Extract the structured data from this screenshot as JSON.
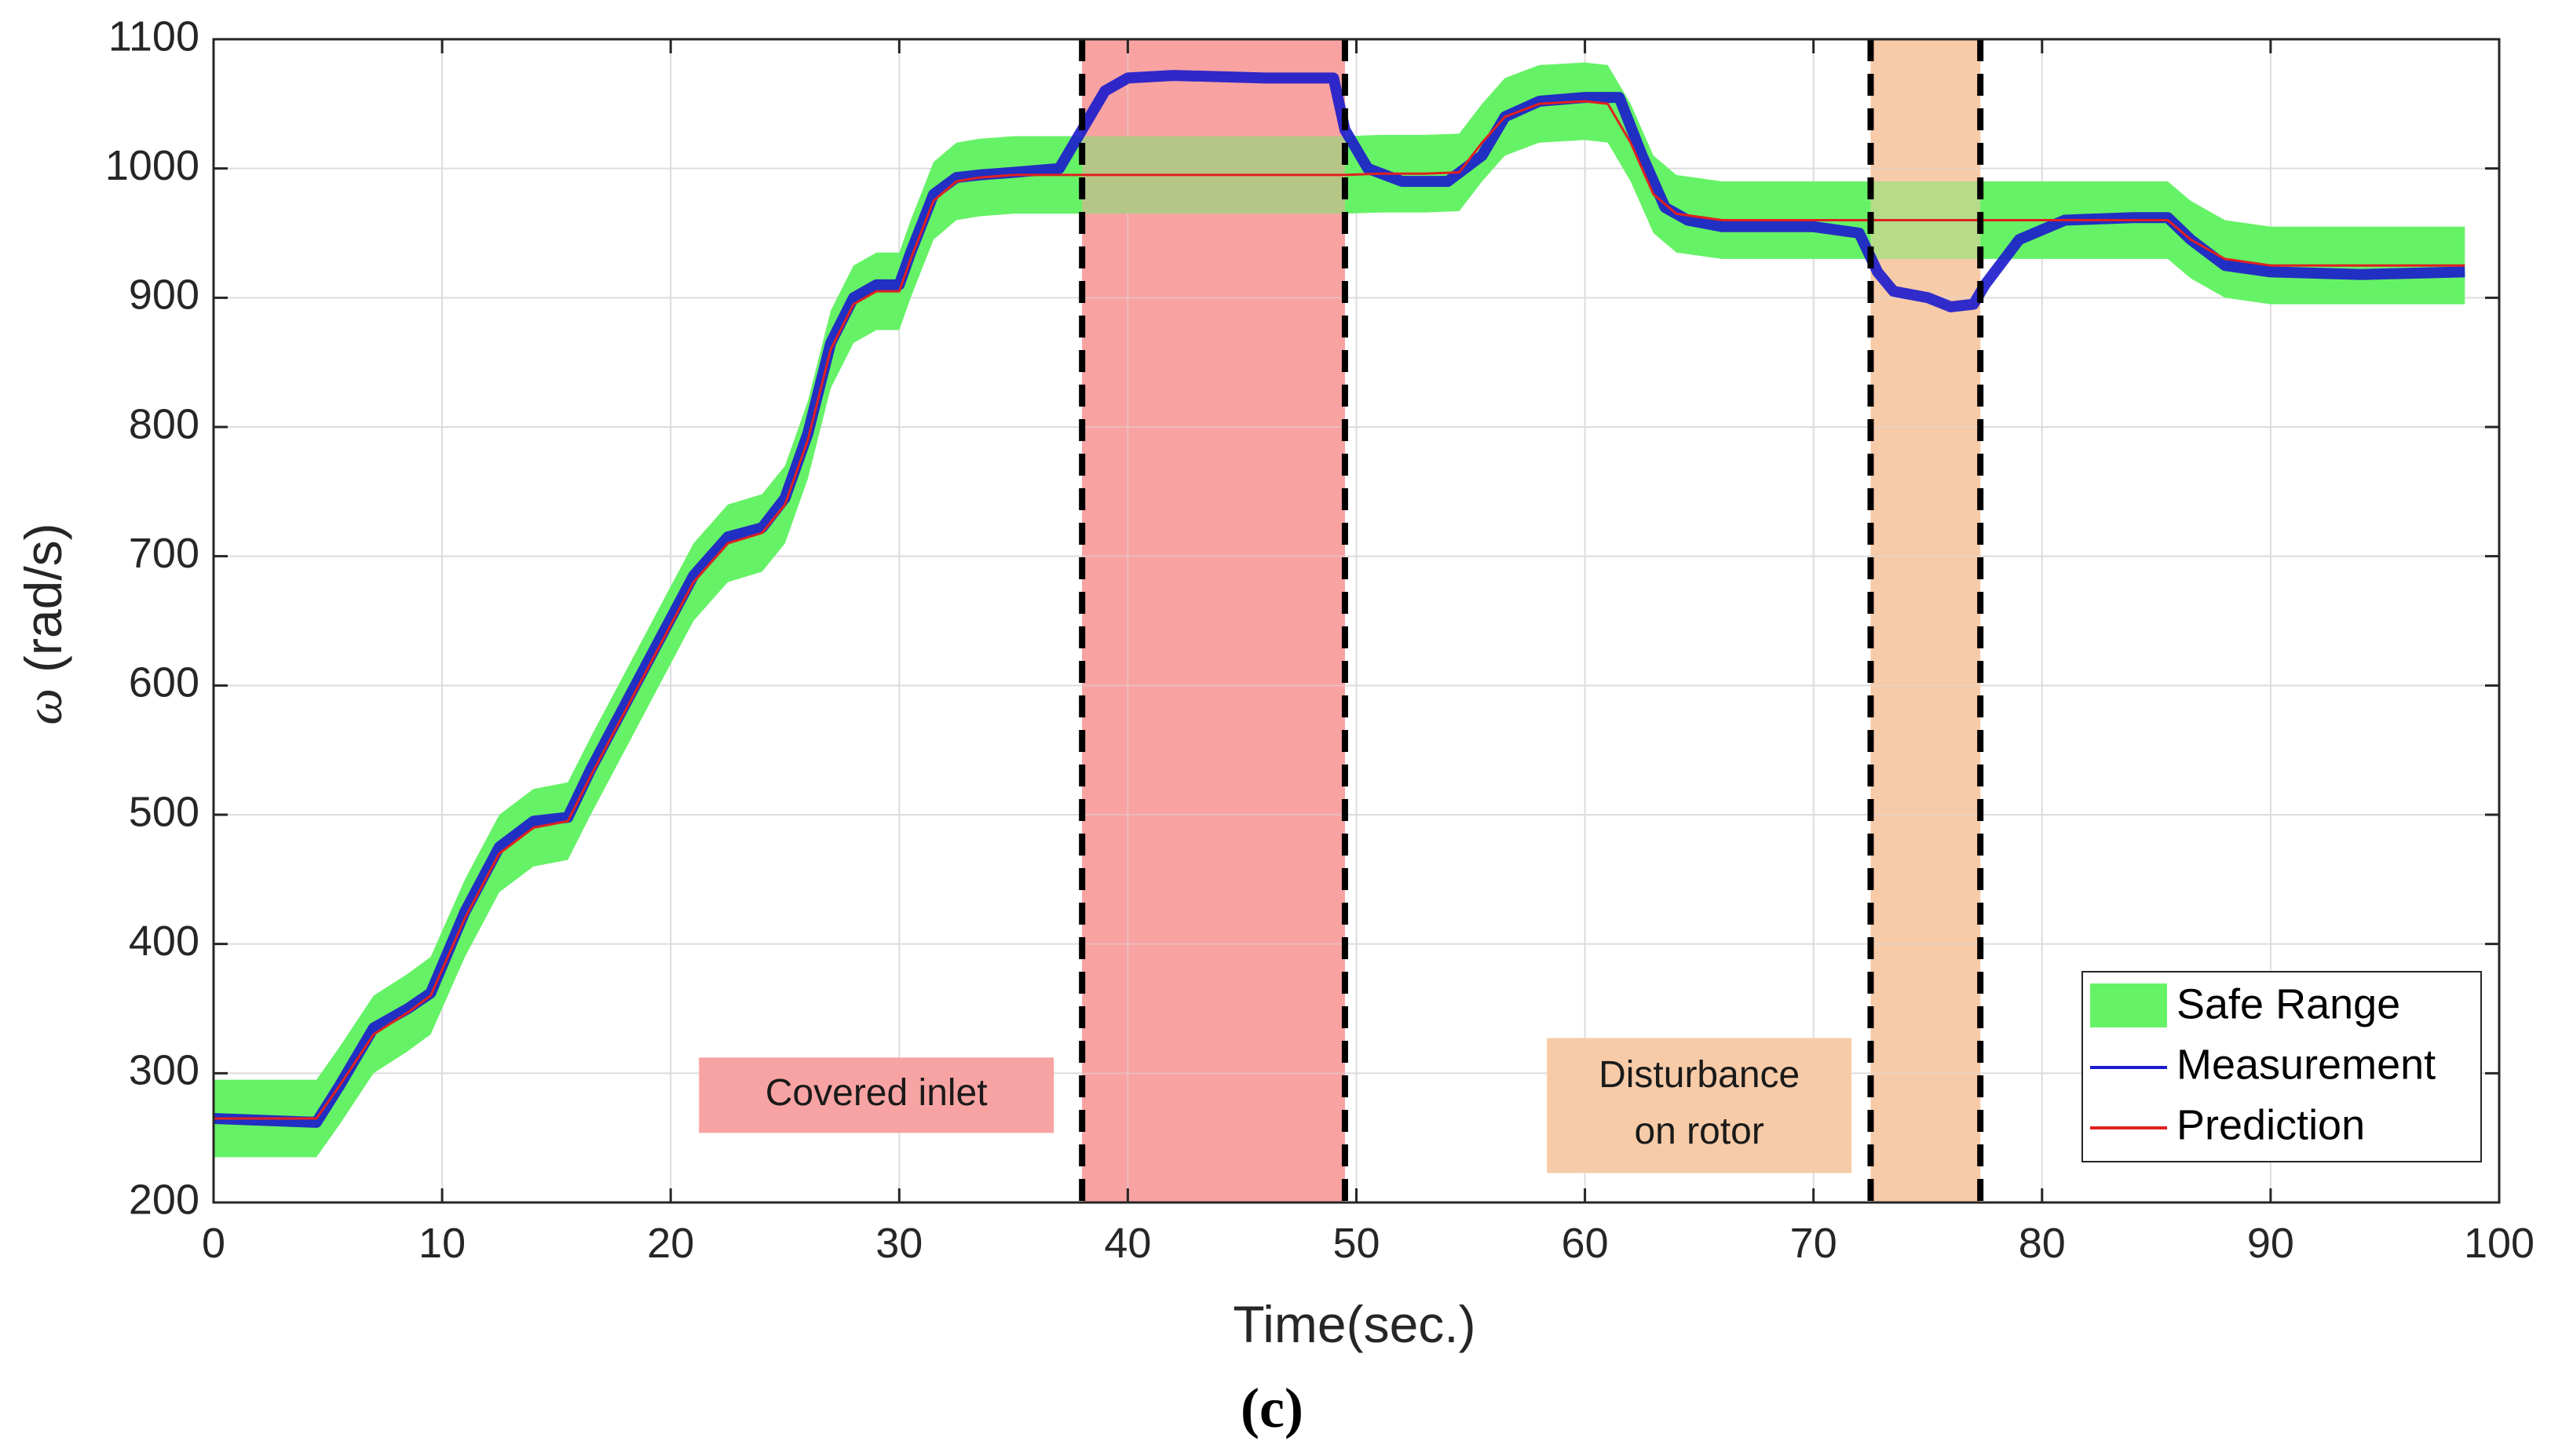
{
  "chart_data": {
    "type": "line",
    "title": "",
    "xlabel": "Time(sec.)",
    "ylabel_symbol": "ω",
    "ylabel_unit": "(rad/s)",
    "caption": "(c)",
    "xlim": [
      0,
      100
    ],
    "ylim": [
      200,
      1100
    ],
    "xticks": [
      0,
      10,
      20,
      30,
      40,
      50,
      60,
      70,
      80,
      90,
      100
    ],
    "yticks": [
      200,
      300,
      400,
      500,
      600,
      700,
      800,
      900,
      1000,
      1100
    ],
    "grid": true,
    "colors": {
      "safe_range": "#66f266",
      "measurement": "#1a1acc",
      "prediction": "#e02020",
      "covered_inlet_region": "#f8a3a3",
      "disturbance_region": "#f7cba8",
      "event_line": "#000000"
    },
    "legend": {
      "position": "bottom-right",
      "entries": [
        {
          "label": "Safe Range",
          "kind": "patch",
          "color": "#66f266"
        },
        {
          "label": "Measurement",
          "kind": "line",
          "color": "#1a1acc"
        },
        {
          "label": "Prediction",
          "kind": "line",
          "color": "#e02020"
        }
      ]
    },
    "regions": [
      {
        "label": "Covered inlet",
        "x_start": 38,
        "x_end": 49.5,
        "color": "#f8a3a3"
      },
      {
        "label_lines": [
          "Disturbance",
          "on rotor"
        ],
        "x_start": 72.5,
        "x_end": 77.3,
        "color": "#f7cba8"
      }
    ],
    "annotations": [
      {
        "text": "Covered inlet",
        "x_center": 29,
        "y_center": 283
      },
      {
        "text_lines": [
          "Disturbance",
          "on rotor"
        ],
        "x_center": 65,
        "y_center": 275
      }
    ],
    "series": [
      {
        "name": "Prediction",
        "x": [
          0,
          4.5,
          5.5,
          7,
          8.5,
          9.5,
          11,
          12.5,
          14,
          15.5,
          16.5,
          18,
          19.5,
          21,
          22.5,
          24,
          25,
          26,
          27,
          28,
          29,
          30,
          30.5,
          31.5,
          32.5,
          33.5,
          35,
          38,
          42,
          46,
          49.5,
          51,
          53,
          54.5,
          55.5,
          56.5,
          58,
          60,
          61,
          62,
          63,
          64,
          66,
          70,
          72.5,
          77.3,
          78,
          79,
          81,
          84,
          85.5,
          86.5,
          88,
          90,
          94,
          98.5
        ],
        "y": [
          265,
          265,
          290,
          330,
          347,
          360,
          420,
          470,
          490,
          495,
          530,
          580,
          630,
          680,
          710,
          718,
          740,
          790,
          860,
          895,
          905,
          905,
          930,
          975,
          990,
          993,
          995,
          995,
          995,
          995,
          995,
          996,
          996,
          997,
          1020,
          1040,
          1050,
          1052,
          1050,
          1020,
          980,
          965,
          960,
          960,
          960,
          960,
          960,
          960,
          960,
          960,
          960,
          945,
          930,
          925,
          925,
          925
        ]
      },
      {
        "name": "Measurement",
        "x": [
          0,
          4.5,
          5.5,
          7,
          8.5,
          9.5,
          11,
          12.5,
          14,
          15.5,
          16.5,
          18,
          19.5,
          21,
          22.5,
          24,
          25,
          26,
          27,
          28,
          29,
          30,
          30.5,
          31.5,
          32.5,
          33.5,
          35,
          37,
          38,
          39,
          40,
          42,
          46,
          49,
          49.5,
          50.5,
          52,
          54,
          55.5,
          56.5,
          58,
          60,
          61.5,
          62.5,
          63.5,
          64.5,
          66,
          70,
          72,
          72.8,
          73.5,
          75,
          76,
          77,
          77.5,
          79,
          81,
          84,
          85.5,
          86.5,
          88,
          90,
          94,
          98.5
        ],
        "y": [
          265,
          262,
          290,
          335,
          350,
          362,
          425,
          475,
          495,
          498,
          535,
          585,
          635,
          685,
          715,
          722,
          745,
          795,
          865,
          900,
          910,
          910,
          935,
          980,
          993,
          995,
          997,
          1000,
          1030,
          1060,
          1070,
          1072,
          1070,
          1070,
          1030,
          1000,
          990,
          990,
          1010,
          1040,
          1052,
          1055,
          1055,
          1010,
          970,
          960,
          955,
          955,
          950,
          920,
          905,
          900,
          893,
          895,
          910,
          945,
          960,
          962,
          962,
          945,
          925,
          920,
          918,
          920
        ]
      },
      {
        "name": "Safe Range",
        "kind": "band",
        "x": [
          0,
          4.5,
          5.5,
          7,
          8.5,
          9.5,
          11,
          12.5,
          14,
          15.5,
          16.5,
          18,
          19.5,
          21,
          22.5,
          24,
          25,
          26,
          27,
          28,
          29,
          30,
          30.5,
          31.5,
          32.5,
          33.5,
          35,
          38,
          42,
          46,
          49.5,
          51,
          53,
          54.5,
          55.5,
          56.5,
          58,
          60,
          61,
          62,
          63,
          64,
          66,
          70,
          72.5,
          77.3,
          78,
          79,
          81,
          84,
          85.5,
          86.5,
          88,
          90,
          94,
          98.5
        ],
        "lower": [
          235,
          235,
          260,
          300,
          317,
          330,
          390,
          440,
          460,
          465,
          500,
          550,
          600,
          650,
          680,
          688,
          710,
          760,
          830,
          865,
          875,
          875,
          900,
          945,
          960,
          963,
          965,
          965,
          965,
          965,
          965,
          966,
          966,
          967,
          990,
          1010,
          1020,
          1022,
          1020,
          990,
          950,
          935,
          930,
          930,
          930,
          930,
          930,
          930,
          930,
          930,
          930,
          915,
          900,
          895,
          895,
          895
        ],
        "upper": [
          295,
          295,
          320,
          360,
          377,
          390,
          450,
          500,
          520,
          525,
          560,
          610,
          660,
          710,
          740,
          748,
          770,
          820,
          890,
          925,
          935,
          935,
          960,
          1005,
          1020,
          1023,
          1025,
          1025,
          1025,
          1025,
          1025,
          1026,
          1026,
          1027,
          1050,
          1070,
          1080,
          1082,
          1080,
          1050,
          1010,
          995,
          990,
          990,
          990,
          990,
          990,
          990,
          990,
          990,
          990,
          975,
          960,
          955,
          955,
          955
        ]
      }
    ]
  }
}
